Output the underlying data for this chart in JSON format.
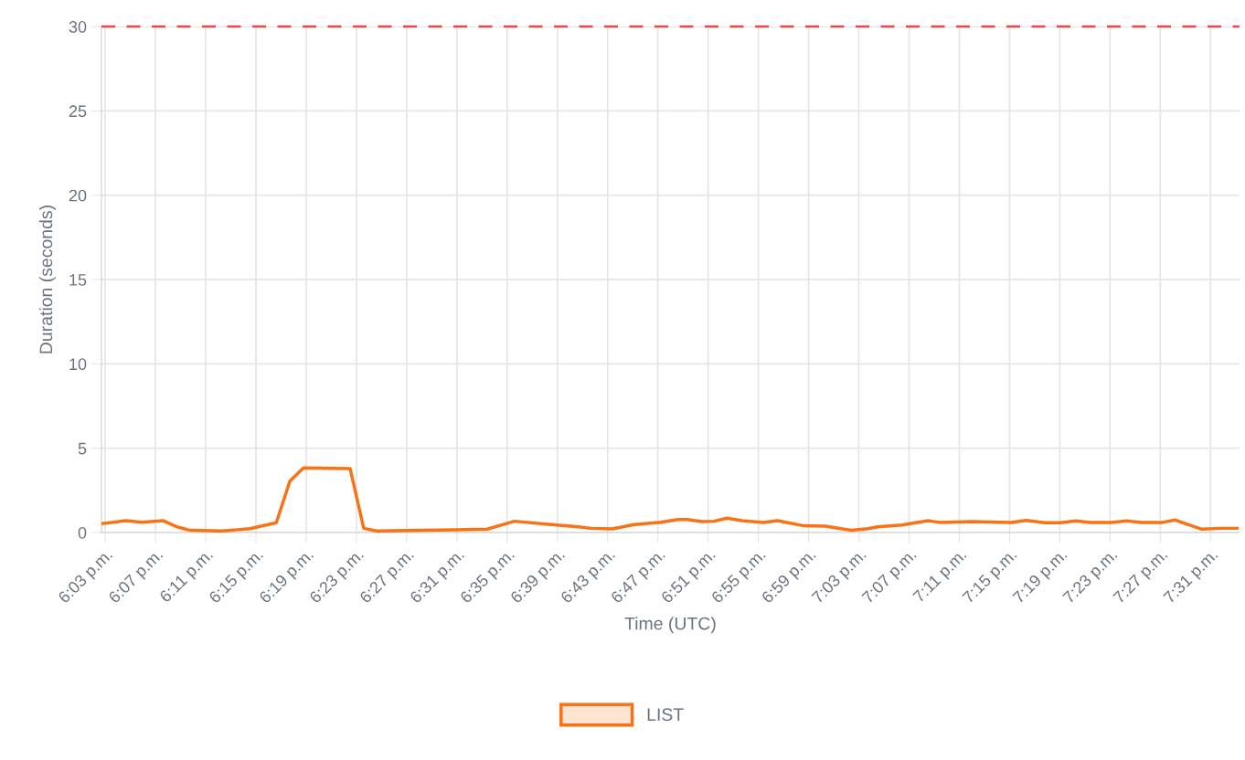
{
  "chart_data": {
    "type": "line",
    "xlabel": "Time (UTC)",
    "ylabel": "Duration (seconds)",
    "xlim": [
      18.045,
      19.555
    ],
    "xticks": [
      {
        "value": 18.05,
        "label": "6:03 p.m."
      },
      {
        "value": 18.1167,
        "label": "6:07 p.m."
      },
      {
        "value": 18.1833,
        "label": "6:11 p.m."
      },
      {
        "value": 18.25,
        "label": "6:15 p.m."
      },
      {
        "value": 18.3167,
        "label": "6:19 p.m."
      },
      {
        "value": 18.3833,
        "label": "6:23 p.m."
      },
      {
        "value": 18.45,
        "label": "6:27 p.m."
      },
      {
        "value": 18.5167,
        "label": "6:31 p.m."
      },
      {
        "value": 18.5833,
        "label": "6:35 p.m."
      },
      {
        "value": 18.65,
        "label": "6:39 p.m."
      },
      {
        "value": 18.7167,
        "label": "6:43 p.m."
      },
      {
        "value": 18.7833,
        "label": "6:47 p.m."
      },
      {
        "value": 18.85,
        "label": "6:51 p.m."
      },
      {
        "value": 18.9167,
        "label": "6:55 p.m."
      },
      {
        "value": 18.9833,
        "label": "6:59 p.m."
      },
      {
        "value": 19.05,
        "label": "7:03 p.m."
      },
      {
        "value": 19.1167,
        "label": "7:07 p.m."
      },
      {
        "value": 19.1833,
        "label": "7:11 p.m."
      },
      {
        "value": 19.25,
        "label": "7:15 p.m."
      },
      {
        "value": 19.3167,
        "label": "7:19 p.m."
      },
      {
        "value": 19.3833,
        "label": "7:23 p.m."
      },
      {
        "value": 19.45,
        "label": "7:27 p.m."
      },
      {
        "value": 19.5167,
        "label": "7:31 p.m."
      }
    ],
    "ylim": [
      0,
      30
    ],
    "yticks": [
      0,
      5,
      10,
      15,
      20,
      25,
      30
    ],
    "grid": true,
    "legend": "bottom",
    "marker": "none",
    "line_style": "solid",
    "ref_lines": [
      {
        "axis": "y",
        "value": 30,
        "color": "#ef4444",
        "line_style": "dashed"
      }
    ],
    "series": [
      {
        "name": "LIST",
        "color": "#f97316",
        "x": [
          18.046,
          18.078,
          18.098,
          18.127,
          18.145,
          18.163,
          18.205,
          18.242,
          18.277,
          18.295,
          18.313,
          18.375,
          18.393,
          18.41,
          18.517,
          18.557,
          18.593,
          18.642,
          18.678,
          18.695,
          18.723,
          18.752,
          18.787,
          18.81,
          18.823,
          18.842,
          18.858,
          18.875,
          18.895,
          18.923,
          18.942,
          18.977,
          19.005,
          19.04,
          19.062,
          19.075,
          19.107,
          19.142,
          19.158,
          19.2,
          19.252,
          19.272,
          19.297,
          19.317,
          19.338,
          19.357,
          19.385,
          19.405,
          19.425,
          19.453,
          19.47,
          19.505,
          19.53,
          19.552
        ],
        "values": [
          0.53,
          0.7,
          0.61,
          0.7,
          0.34,
          0.13,
          0.09,
          0.23,
          0.58,
          3.05,
          3.83,
          3.79,
          0.25,
          0.09,
          0.16,
          0.2,
          0.67,
          0.47,
          0.34,
          0.25,
          0.22,
          0.47,
          0.61,
          0.77,
          0.77,
          0.65,
          0.67,
          0.85,
          0.7,
          0.6,
          0.7,
          0.4,
          0.38,
          0.13,
          0.23,
          0.34,
          0.45,
          0.7,
          0.6,
          0.65,
          0.6,
          0.72,
          0.58,
          0.58,
          0.69,
          0.6,
          0.6,
          0.69,
          0.6,
          0.6,
          0.74,
          0.2,
          0.25,
          0.25
        ]
      }
    ]
  }
}
